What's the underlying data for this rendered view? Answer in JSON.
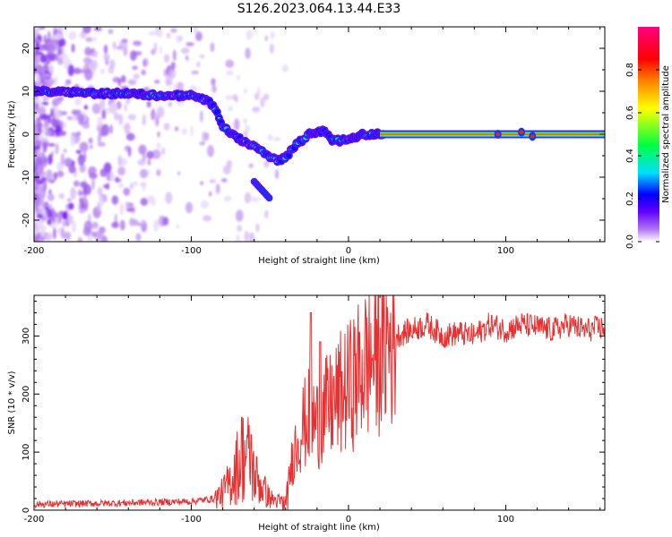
{
  "title": "S126.2023.064.13.44.E33",
  "chart_data": [
    {
      "type": "heatmap",
      "xlabel": "Height of straight line (km)",
      "ylabel": "Frequency (Hz)",
      "xlim": [
        -200,
        163
      ],
      "ylim": [
        -25,
        25
      ],
      "xticks": [
        -200,
        -100,
        0,
        100
      ],
      "yticks": [
        -20,
        -10,
        0,
        10,
        20
      ],
      "colorbar": {
        "label": "Normalized spectral amplitude",
        "range": [
          0,
          1
        ],
        "ticks": [
          "0.0",
          "0.2",
          "0.4",
          "0.6",
          "0.8"
        ],
        "colors": [
          "#ffffff",
          "#b070f0",
          "#6000ff",
          "#0000ff",
          "#00e0ff",
          "#00ff40",
          "#ffff00",
          "#ff8000",
          "#ff0000",
          "#ff0080"
        ]
      },
      "ridge": {
        "x": [
          -200,
          -180,
          -160,
          -140,
          -120,
          -100,
          -90,
          -85,
          -80,
          -75,
          -70,
          -65,
          -60,
          -55,
          -50,
          -45,
          -40,
          -35,
          -32,
          -28,
          -25,
          -20,
          -15,
          -10,
          -5,
          0,
          5,
          10,
          15,
          20,
          40,
          60,
          80,
          100,
          110,
          115,
          120,
          140,
          163
        ],
        "freq_hz": [
          10,
          10,
          9.5,
          9.5,
          9,
          9,
          8,
          6,
          2,
          0,
          -1,
          -2,
          -3,
          -4,
          -5.5,
          -6,
          -5.5,
          -3,
          -2,
          -1,
          0,
          0.5,
          1,
          -1.5,
          -1.5,
          -1,
          -0.5,
          0,
          0,
          0,
          0,
          0,
          0,
          0,
          0.5,
          -0.5,
          0,
          0,
          0
        ]
      },
      "secondary_branch": {
        "x": [
          -60,
          -55,
          -50
        ],
        "freq_hz": [
          -11,
          -13,
          -15
        ]
      }
    },
    {
      "type": "line",
      "xlabel": "Height of straight line (km)",
      "ylabel": "SNR (10 * v/v)",
      "xlim": [
        -200,
        163
      ],
      "ylim": [
        0,
        370
      ],
      "xticks": [
        -200,
        -100,
        0,
        100
      ],
      "yticks": [
        0,
        100,
        200,
        300
      ],
      "color": "#e83030",
      "series": [
        {
          "x": [
            -200,
            -150,
            -100,
            -85,
            -80,
            -75,
            -70,
            -65,
            -60,
            -55,
            -50,
            -45,
            -40,
            -38,
            -35,
            -30,
            -25,
            -20,
            -15,
            -10,
            -5,
            0,
            5,
            10,
            20,
            30,
            40,
            50,
            60,
            70,
            80,
            90,
            100,
            110,
            120,
            130,
            140,
            150,
            163
          ],
          "y": [
            10,
            12,
            15,
            20,
            30,
            50,
            80,
            100,
            60,
            40,
            20,
            15,
            15,
            50,
            100,
            140,
            160,
            150,
            170,
            180,
            200,
            210,
            230,
            250,
            280,
            300,
            310,
            320,
            300,
            305,
            300,
            320,
            310,
            320,
            315,
            310,
            320,
            310,
            315
          ]
        }
      ],
      "peaks": {
        "x": [
          -68,
          -62,
          -24,
          -18
        ],
        "y": [
          160,
          130,
          340,
          290
        ]
      }
    }
  ]
}
